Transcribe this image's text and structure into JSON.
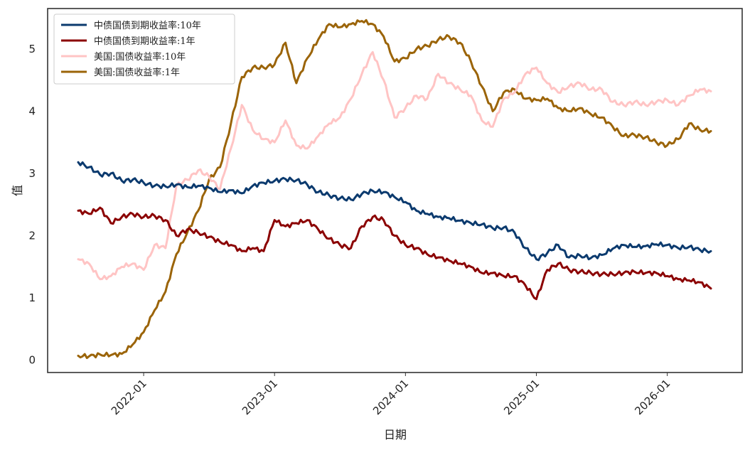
{
  "chart_data": {
    "type": "line",
    "xlabel": "日期",
    "ylabel": "值",
    "x_start": "2021-07",
    "x_end": "2026-05",
    "ylim": [
      -0.2,
      5.65
    ],
    "yticks": [
      0,
      1,
      2,
      3,
      4,
      5
    ],
    "xticks": [
      {
        "label": "2022-01",
        "date": "2022-01"
      },
      {
        "label": "2023-01",
        "date": "2023-01"
      },
      {
        "label": "2024-01",
        "date": "2024-01"
      },
      {
        "label": "2025-01",
        "date": "2025-01"
      },
      {
        "label": "2026-01",
        "date": "2026-01"
      }
    ],
    "grid": false,
    "legend_position": "top-left",
    "dates": [
      "2021-07",
      "2021-08",
      "2021-09",
      "2021-10",
      "2021-11",
      "2021-12",
      "2022-01",
      "2022-02",
      "2022-03",
      "2022-04",
      "2022-05",
      "2022-06",
      "2022-07",
      "2022-08",
      "2022-09",
      "2022-10",
      "2022-11",
      "2022-12",
      "2023-01",
      "2023-02",
      "2023-03",
      "2023-04",
      "2023-05",
      "2023-06",
      "2023-07",
      "2023-08",
      "2023-09",
      "2023-10",
      "2023-11",
      "2023-12",
      "2024-01",
      "2024-02",
      "2024-03",
      "2024-04",
      "2024-05",
      "2024-06",
      "2024-07",
      "2024-08",
      "2024-09",
      "2024-10",
      "2024-11",
      "2024-12",
      "2025-01",
      "2025-02",
      "2025-03",
      "2025-04",
      "2025-05",
      "2025-06",
      "2025-07",
      "2025-08",
      "2025-09",
      "2025-10",
      "2025-11",
      "2025-12",
      "2026-01",
      "2026-02",
      "2026-03",
      "2026-04",
      "2026-05"
    ],
    "series": [
      {
        "name": "中债国债到期收益率:10年",
        "color": "#0b3a6e",
        "values": [
          3.18,
          3.1,
          2.98,
          3.0,
          2.88,
          2.9,
          2.85,
          2.8,
          2.79,
          2.82,
          2.78,
          2.8,
          2.77,
          2.7,
          2.73,
          2.68,
          2.8,
          2.85,
          2.88,
          2.91,
          2.89,
          2.82,
          2.7,
          2.65,
          2.6,
          2.58,
          2.67,
          2.72,
          2.7,
          2.62,
          2.54,
          2.4,
          2.35,
          2.3,
          2.28,
          2.24,
          2.2,
          2.18,
          2.12,
          2.13,
          2.05,
          1.8,
          1.62,
          1.72,
          1.85,
          1.65,
          1.68,
          1.64,
          1.69,
          1.79,
          1.85,
          1.82,
          1.83,
          1.86,
          1.85,
          1.8,
          1.82,
          1.77,
          1.75
        ]
      },
      {
        "name": "中债国债到期收益率:1年",
        "color": "#8b0000",
        "values": [
          2.4,
          2.35,
          2.45,
          2.2,
          2.3,
          2.35,
          2.3,
          2.32,
          2.25,
          2.0,
          2.1,
          2.05,
          1.98,
          1.9,
          1.85,
          1.75,
          1.8,
          1.75,
          2.25,
          2.15,
          2.2,
          2.25,
          2.1,
          1.95,
          1.85,
          1.8,
          2.15,
          2.3,
          2.25,
          2.0,
          1.85,
          1.8,
          1.7,
          1.65,
          1.6,
          1.55,
          1.5,
          1.4,
          1.4,
          1.35,
          1.35,
          1.2,
          0.98,
          1.45,
          1.55,
          1.45,
          1.42,
          1.4,
          1.38,
          1.38,
          1.4,
          1.42,
          1.4,
          1.4,
          1.35,
          1.3,
          1.28,
          1.25,
          1.15
        ]
      },
      {
        "name": "美国:国债收益率:10年",
        "color": "#ffc4c4",
        "values": [
          1.62,
          1.55,
          1.3,
          1.35,
          1.5,
          1.55,
          1.45,
          1.85,
          1.8,
          2.8,
          2.9,
          3.05,
          2.95,
          2.75,
          3.4,
          4.1,
          3.7,
          3.55,
          3.5,
          3.85,
          3.45,
          3.4,
          3.6,
          3.8,
          3.9,
          4.2,
          4.6,
          4.95,
          4.5,
          3.9,
          4.05,
          4.25,
          4.2,
          4.6,
          4.45,
          4.35,
          4.25,
          3.85,
          3.75,
          4.2,
          4.3,
          4.6,
          4.7,
          4.45,
          4.3,
          4.4,
          4.45,
          4.35,
          4.35,
          4.15,
          4.1,
          4.15,
          4.1,
          4.15,
          4.18,
          4.1,
          4.25,
          4.35,
          4.32
        ]
      },
      {
        "name": "美国:国债收益率:1年",
        "color": "#9b6408",
        "values": [
          0.07,
          0.06,
          0.09,
          0.08,
          0.1,
          0.25,
          0.45,
          0.8,
          1.1,
          1.7,
          2.05,
          2.4,
          2.9,
          3.1,
          3.8,
          4.55,
          4.7,
          4.7,
          4.75,
          5.1,
          4.45,
          4.85,
          5.15,
          5.4,
          5.35,
          5.4,
          5.45,
          5.4,
          5.2,
          4.8,
          4.85,
          5.0,
          5.05,
          5.15,
          5.2,
          5.1,
          4.8,
          4.4,
          4.0,
          4.3,
          4.35,
          4.2,
          4.18,
          4.2,
          4.05,
          4.0,
          4.05,
          3.95,
          3.9,
          3.75,
          3.6,
          3.62,
          3.58,
          3.5,
          3.45,
          3.55,
          3.8,
          3.7,
          3.68
        ]
      }
    ]
  }
}
